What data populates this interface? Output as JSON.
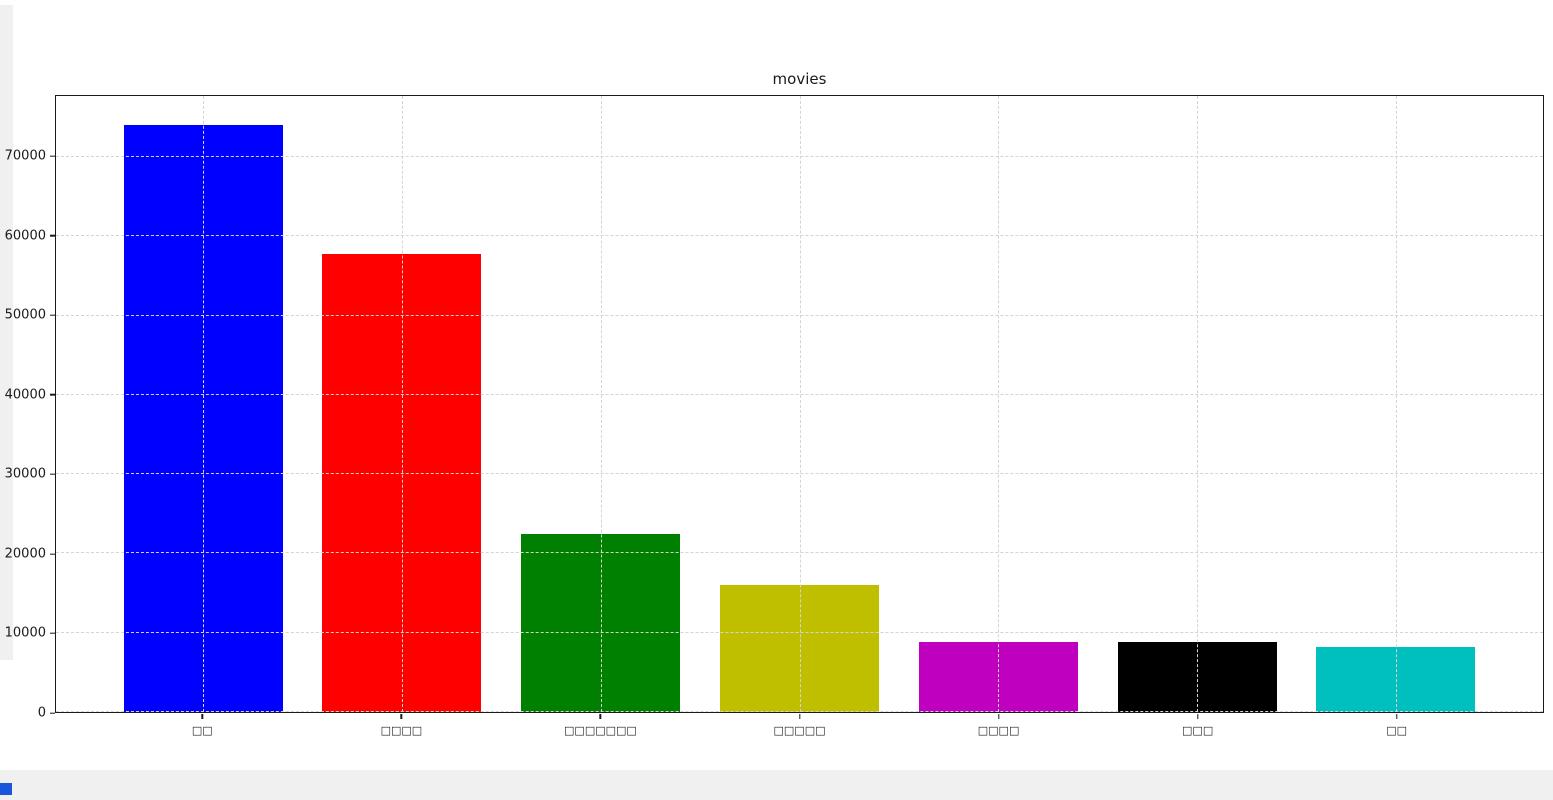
{
  "chart_data": {
    "type": "bar",
    "title": "movies",
    "categories": [
      "□□",
      "□□□□",
      "□□□□□□□",
      "□□□□□",
      "□□□□",
      "□□□",
      "□□"
    ],
    "values": [
      74000,
      57800,
      22400,
      16000,
      8800,
      8800,
      8200
    ],
    "colors": [
      "#0000ff",
      "#ff0000",
      "#008000",
      "#bfbf00",
      "#bf00bf",
      "#000000",
      "#00bfbf"
    ],
    "yticks": [
      0,
      10000,
      20000,
      30000,
      40000,
      50000,
      60000,
      70000
    ],
    "ylim": [
      0,
      77700
    ],
    "xlim": [
      -0.74,
      6.74
    ],
    "bar_width": 0.8,
    "grid": "dashed",
    "grid_above_bars": true,
    "legend": "none",
    "xlabel": "",
    "ylabel": "",
    "note": "x tick labels rendered as missing-glyph tofu boxes (CJK font not available)"
  },
  "chrome": {
    "background_color": "#ffffff",
    "edge_strip_color": "#f0f0f0",
    "accent_square_color": "#1a56db",
    "grid_color": "#d4d4d4",
    "frame_color": "#1a1a1a"
  }
}
